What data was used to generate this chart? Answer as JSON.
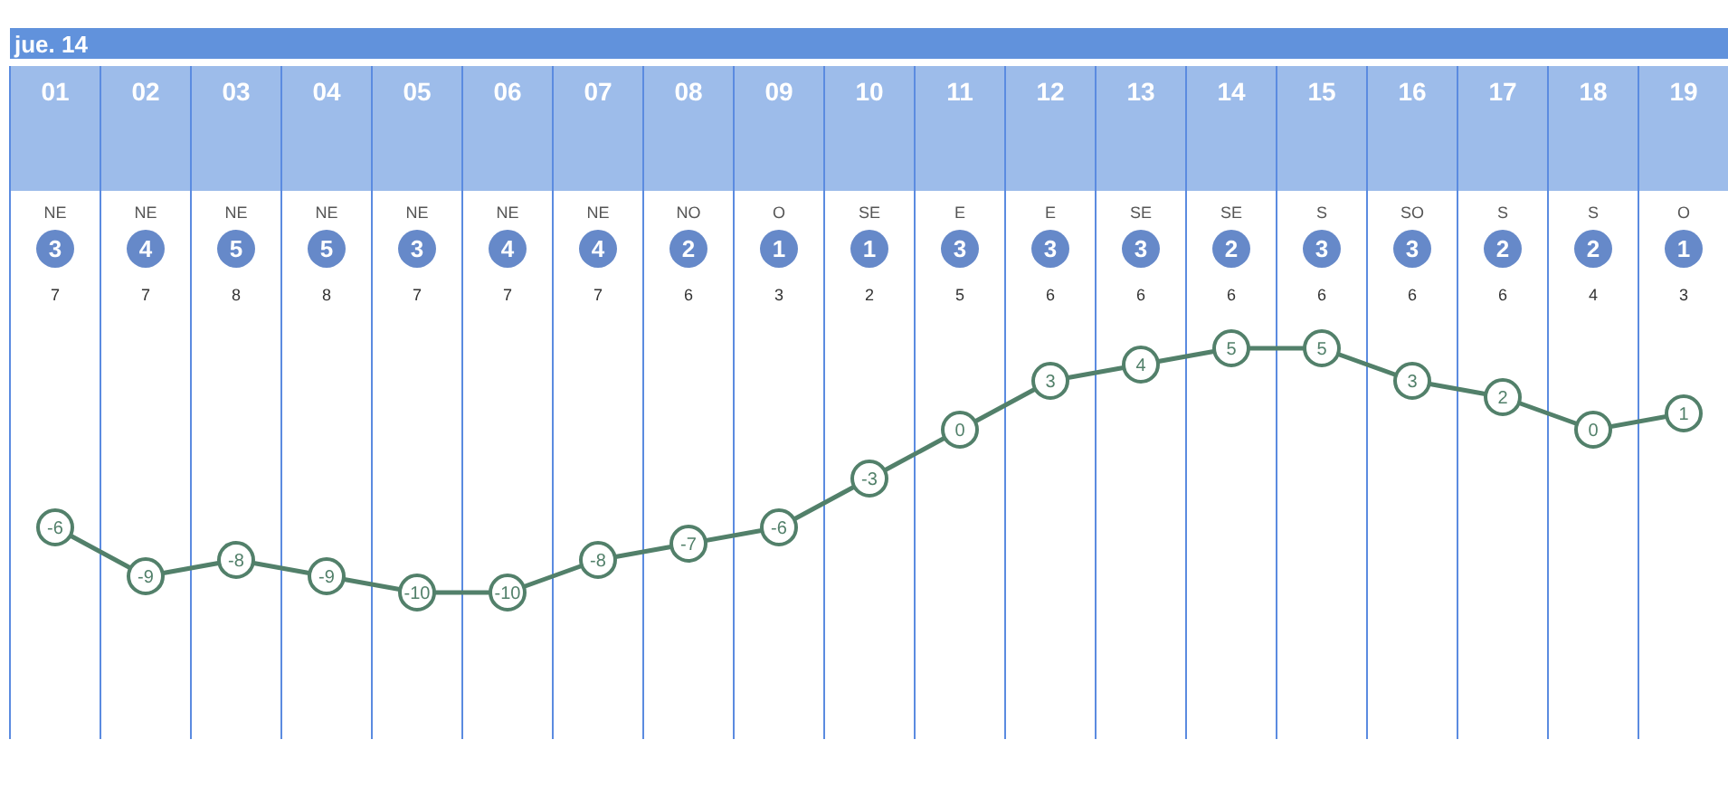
{
  "chart_data": {
    "type": "line",
    "title": "jue. 14",
    "categories": [
      "01",
      "02",
      "03",
      "04",
      "05",
      "06",
      "07",
      "08",
      "09",
      "10",
      "11",
      "12",
      "13",
      "14",
      "15",
      "16",
      "17",
      "18",
      "19"
    ],
    "series": [
      {
        "color": "#52806a",
        "values": [
          -6,
          -9,
          -8,
          -9,
          -10,
          -10,
          -8,
          -7,
          -6,
          -3,
          0,
          3,
          4,
          5,
          5,
          3,
          2,
          0,
          1
        ]
      }
    ],
    "data_labels": true,
    "marker": "circle",
    "grid": "x",
    "annotations": [
      "NE",
      "NE",
      "NE",
      "NE",
      "NE",
      "NE",
      "NE",
      "NO",
      "O",
      "SE",
      "E",
      "E",
      "SE",
      "SE",
      "S",
      "SO",
      "S",
      "S",
      "O",
      "3",
      "4",
      "5",
      "5",
      "3",
      "4",
      "4",
      "2",
      "1",
      "1",
      "3",
      "3",
      "3",
      "2",
      "3",
      "3",
      "2",
      "2",
      "1",
      "7",
      "7",
      "8",
      "8",
      "7",
      "7",
      "7",
      "6",
      "3",
      "2",
      "5",
      "6",
      "6",
      "6",
      "6",
      "6",
      "6",
      "4",
      "3"
    ]
  }
}
